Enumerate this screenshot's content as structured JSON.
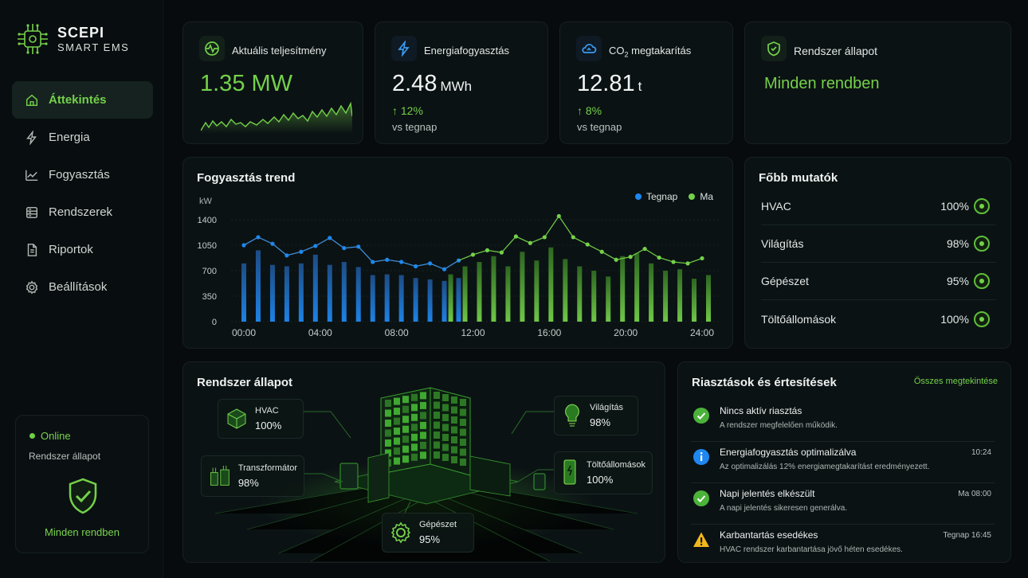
{
  "brand": {
    "title": "SCEPI",
    "subtitle": "SMART EMS"
  },
  "nav": [
    {
      "label": "Áttekintés",
      "icon": "home-icon",
      "active": true
    },
    {
      "label": "Energia",
      "icon": "bolt-icon"
    },
    {
      "label": "Fogyasztás",
      "icon": "trend-icon"
    },
    {
      "label": "Rendszerek",
      "icon": "server-icon"
    },
    {
      "label": "Riportok",
      "icon": "document-icon"
    },
    {
      "label": "Beállítások",
      "icon": "gear-icon"
    }
  ],
  "sidebar_status": {
    "online": "Online",
    "label": "Rendszer állapot",
    "ok": "Minden rendben"
  },
  "kpis": {
    "power": {
      "title": "Aktuális teljesítmény",
      "value": "1.35 MW"
    },
    "energy": {
      "title": "Energiafogyasztás",
      "value": "2.48",
      "unit": "MWh",
      "delta": "↑ 12%",
      "vs": "vs tegnap"
    },
    "co2": {
      "title_pre": "CO",
      "title_sub": "2",
      "title_post": " megtakarítás",
      "value": "12.81",
      "unit": "t",
      "delta": "↑ 8%",
      "vs": "vs tegnap"
    },
    "status": {
      "title": "Rendszer állapot",
      "value": "Minden rendben"
    }
  },
  "colors": {
    "green": "#74d14a",
    "blue": "#1e88f0",
    "bg": "#070b0d"
  },
  "chart_data": {
    "type": "bar",
    "title": "Fogyasztás trend",
    "ylabel": "kW",
    "ylim": [
      0,
      1400
    ],
    "yticks": [
      0,
      350,
      700,
      1050,
      1400
    ],
    "xticks": [
      "00:00",
      "04:00",
      "08:00",
      "12:00",
      "16:00",
      "20:00",
      "24:00"
    ],
    "x": [
      0,
      0.75,
      1.5,
      2.25,
      3,
      3.75,
      4.5,
      5.25,
      6,
      6.75,
      7.5,
      8.25,
      9,
      9.75,
      10.5,
      11.25,
      12,
      12.75,
      13.5,
      14.25,
      15,
      15.75,
      16.5,
      17.25,
      18,
      18.75,
      19.5,
      20.25,
      21,
      21.75,
      22.5,
      23.25,
      24
    ],
    "series": [
      {
        "name": "Tegnap",
        "bars": [
          800,
          980,
          780,
          760,
          800,
          920,
          780,
          820,
          750,
          640,
          650,
          640,
          600,
          580,
          560,
          600
        ],
        "points": [
          1050,
          1160,
          1070,
          910,
          960,
          1040,
          1150,
          1010,
          1030,
          820,
          850,
          820,
          760,
          800,
          720,
          840
        ]
      },
      {
        "name": "Ma",
        "bars": [
          650,
          760,
          820,
          900,
          760,
          960,
          840,
          1020,
          860,
          760,
          700,
          620,
          900,
          940,
          800,
          700,
          720,
          590,
          640
        ],
        "points": [
          920,
          980,
          950,
          1170,
          1080,
          1160,
          1450,
          1160,
          1060,
          960,
          850,
          890,
          1000,
          880,
          820,
          800,
          870
        ]
      }
    ]
  },
  "chart_legend": [
    "Tegnap",
    "Ma"
  ],
  "metrics": {
    "title": "Főbb mutatók",
    "rows": [
      {
        "label": "HVAC",
        "value": "100%"
      },
      {
        "label": "Világítás",
        "value": "98%"
      },
      {
        "label": "Gépészet",
        "value": "95%"
      },
      {
        "label": "Töltőállomások",
        "value": "100%"
      }
    ]
  },
  "system": {
    "title": "Rendszer állapot",
    "tiles": [
      {
        "name": "HVAC",
        "value": "100%",
        "icon": "cube-icon"
      },
      {
        "name": "Transzformátor",
        "value": "98%",
        "icon": "transformer-icon"
      },
      {
        "name": "Világítás",
        "value": "98%",
        "icon": "bulb-icon"
      },
      {
        "name": "Töltőállomások",
        "value": "100%",
        "icon": "charger-icon"
      },
      {
        "name": "Gépészet",
        "value": "95%",
        "icon": "gear-icon"
      }
    ]
  },
  "alerts": {
    "title": "Riasztások és értesítések",
    "link": "Összes megtekintése",
    "items": [
      {
        "type": "ok",
        "title": "Nincs aktív riasztás",
        "desc": "A rendszer megfelelően működik.",
        "time": ""
      },
      {
        "type": "info",
        "title": "Energiafogyasztás optimalizálva",
        "desc": "Az optimalizálás 12% energiamegtakarítást eredményezett.",
        "time": "10:24"
      },
      {
        "type": "ok",
        "title": "Napi jelentés elkészült",
        "desc": "A napi jelentés sikeresen generálva.",
        "time": "Ma 08:00"
      },
      {
        "type": "warn",
        "title": "Karbantartás esedékes",
        "desc": "HVAC rendszer karbantartása jövő héten esedékes.",
        "time": "Tegnap 16:45"
      }
    ]
  }
}
